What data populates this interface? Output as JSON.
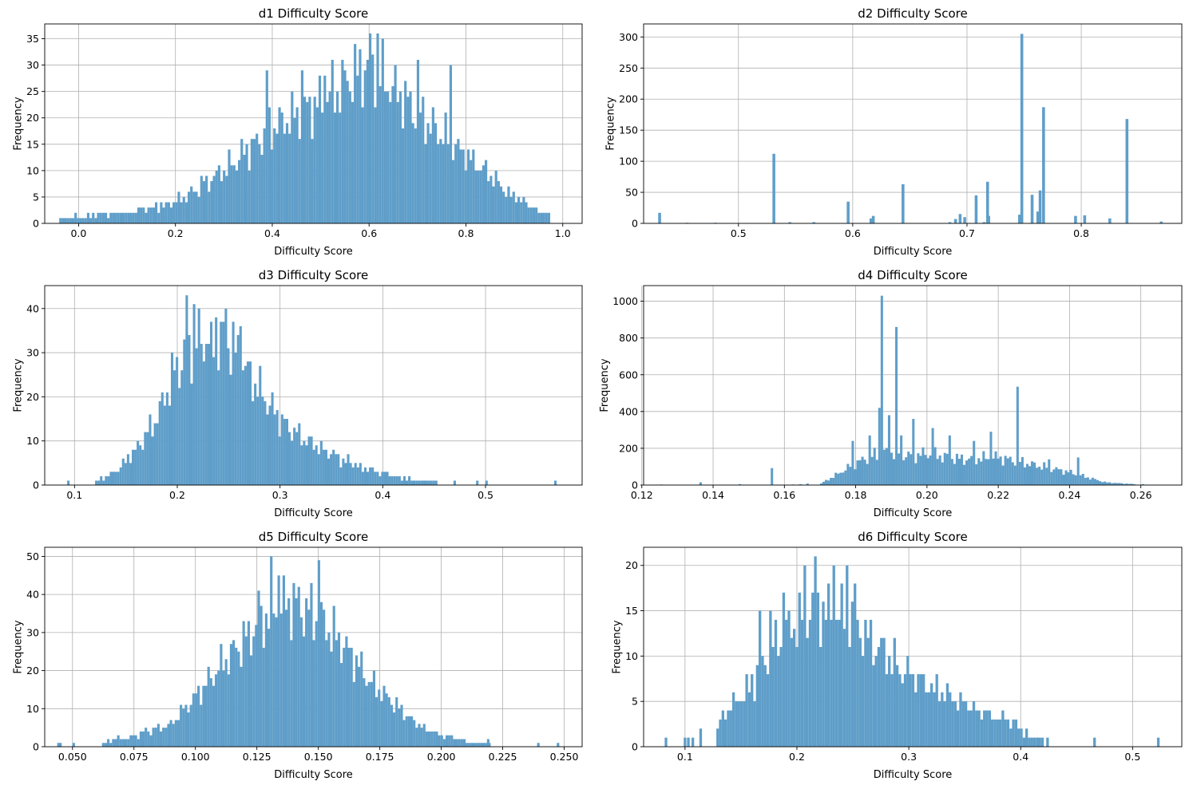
{
  "figure": {
    "bar_color": "#5f9ec9",
    "grid_color": "#b0b0b0"
  },
  "chart_data": [
    {
      "id": "d1",
      "type": "bar",
      "title": "d1 Difficulty Score",
      "xlabel": "Difficulty Score",
      "ylabel": "Frequency",
      "grid": true,
      "xlim": [
        -0.07,
        1.04
      ],
      "ylim": [
        0,
        37.8
      ],
      "xticks": [
        0.0,
        0.2,
        0.4,
        0.6,
        0.8,
        1.0
      ],
      "xtick_labels": [
        "0.0",
        "0.2",
        "0.4",
        "0.6",
        "0.8",
        "1.0"
      ],
      "yticks": [
        0,
        5,
        10,
        15,
        20,
        25,
        30,
        35
      ],
      "ytick_labels": [
        "0",
        "5",
        "10",
        "15",
        "20",
        "25",
        "30",
        "35"
      ],
      "bins": {
        "start": -0.04,
        "width": 0.0052,
        "count": 195
      },
      "envelope": [
        [
          -0.04,
          1
        ],
        [
          0.1,
          2
        ],
        [
          0.2,
          4
        ],
        [
          0.3,
          10
        ],
        [
          0.4,
          18
        ],
        [
          0.5,
          23
        ],
        [
          0.6,
          30
        ],
        [
          0.7,
          21
        ],
        [
          0.8,
          13
        ],
        [
          0.9,
          5
        ],
        [
          0.98,
          1
        ]
      ],
      "peaks": [
        [
          0.6,
          36
        ],
        [
          0.617,
          36
        ],
        [
          0.51,
          28
        ],
        [
          0.767,
          30
        ],
        [
          0.46,
          29
        ],
        [
          0.39,
          29
        ],
        [
          0.7,
          31
        ]
      ]
    },
    {
      "id": "d2",
      "type": "bar",
      "title": "d2 Difficulty Score",
      "xlabel": "Difficulty Score",
      "ylabel": "Frequency",
      "grid": true,
      "xlim": [
        0.417,
        0.888
      ],
      "ylim": [
        0,
        321
      ],
      "xticks": [
        0.5,
        0.6,
        0.7,
        0.8
      ],
      "xtick_labels": [
        "0.5",
        "0.6",
        "0.7",
        "0.8"
      ],
      "yticks": [
        0,
        50,
        100,
        150,
        200,
        250,
        300
      ],
      "ytick_labels": [
        "0",
        "50",
        "100",
        "150",
        "200",
        "250",
        "300"
      ],
      "bars": [
        [
          0.431,
          17
        ],
        [
          0.455,
          1
        ],
        [
          0.48,
          1
        ],
        [
          0.531,
          112
        ],
        [
          0.545,
          2
        ],
        [
          0.566,
          2
        ],
        [
          0.596,
          35
        ],
        [
          0.616,
          8
        ],
        [
          0.618,
          12
        ],
        [
          0.644,
          63
        ],
        [
          0.685,
          2
        ],
        [
          0.69,
          7
        ],
        [
          0.694,
          15
        ],
        [
          0.698,
          10
        ],
        [
          0.708,
          45
        ],
        [
          0.715,
          2
        ],
        [
          0.718,
          67
        ],
        [
          0.719,
          12
        ],
        [
          0.746,
          14
        ],
        [
          0.748,
          305
        ],
        [
          0.757,
          46
        ],
        [
          0.762,
          19
        ],
        [
          0.764,
          53
        ],
        [
          0.767,
          187
        ],
        [
          0.795,
          12
        ],
        [
          0.803,
          13
        ],
        [
          0.825,
          8
        ],
        [
          0.84,
          168
        ],
        [
          0.87,
          3
        ]
      ]
    },
    {
      "id": "d3",
      "type": "bar",
      "title": "d3 Difficulty Score",
      "xlabel": "Difficulty Score",
      "ylabel": "Frequency",
      "grid": true,
      "xlim": [
        0.071,
        0.594
      ],
      "ylim": [
        0,
        45.2
      ],
      "xticks": [
        0.1,
        0.2,
        0.3,
        0.4,
        0.5
      ],
      "xtick_labels": [
        "0.1",
        "0.2",
        "0.3",
        "0.4",
        "0.5"
      ],
      "yticks": [
        0,
        10,
        20,
        30,
        40
      ],
      "ytick_labels": [
        "0",
        "10",
        "20",
        "30",
        "40"
      ],
      "bins": {
        "start": 0.12,
        "width": 0.00238,
        "count": 147
      },
      "envelope": [
        [
          0.12,
          1
        ],
        [
          0.14,
          3
        ],
        [
          0.16,
          8
        ],
        [
          0.18,
          15
        ],
        [
          0.2,
          27
        ],
        [
          0.22,
          33
        ],
        [
          0.25,
          33
        ],
        [
          0.27,
          25
        ],
        [
          0.3,
          15
        ],
        [
          0.32,
          11
        ],
        [
          0.35,
          7
        ],
        [
          0.38,
          4
        ],
        [
          0.41,
          2
        ],
        [
          0.47,
          0
        ]
      ],
      "peaks": [
        [
          0.21,
          43
        ],
        [
          0.233,
          37
        ],
        [
          0.248,
          40
        ],
        [
          0.239,
          38
        ],
        [
          0.217,
          41
        ],
        [
          0.261,
          36
        ]
      ],
      "extra_bars": [
        [
          0.094,
          1
        ],
        [
          0.43,
          1
        ],
        [
          0.44,
          1
        ],
        [
          0.47,
          1
        ],
        [
          0.492,
          1
        ],
        [
          0.501,
          1
        ],
        [
          0.568,
          1
        ]
      ]
    },
    {
      "id": "d4",
      "type": "bar",
      "title": "d4 Difficulty Score",
      "xlabel": "Difficulty Score",
      "ylabel": "Frequency",
      "grid": true,
      "xlim": [
        0.1205,
        0.2715
      ],
      "ylim": [
        0,
        1085
      ],
      "xticks": [
        0.12,
        0.14,
        0.16,
        0.18,
        0.2,
        0.22,
        0.24,
        0.26
      ],
      "xtick_labels": [
        "0.12",
        "0.14",
        "0.16",
        "0.18",
        "0.20",
        "0.22",
        "0.24",
        "0.26"
      ],
      "yticks": [
        0,
        200,
        400,
        600,
        800,
        1000
      ],
      "ytick_labels": [
        "0",
        "200",
        "400",
        "600",
        "800",
        "1000"
      ],
      "bins": {
        "start": 0.17,
        "width": 0.00068,
        "count": 130
      },
      "envelope": [
        [
          0.17,
          5
        ],
        [
          0.175,
          60
        ],
        [
          0.18,
          120
        ],
        [
          0.185,
          160
        ],
        [
          0.19,
          180
        ],
        [
          0.195,
          160
        ],
        [
          0.2,
          170
        ],
        [
          0.21,
          140
        ],
        [
          0.22,
          150
        ],
        [
          0.23,
          110
        ],
        [
          0.24,
          70
        ],
        [
          0.25,
          15
        ],
        [
          0.258,
          5
        ]
      ],
      "peaks": [
        [
          0.1875,
          1030
        ],
        [
          0.1914,
          860
        ],
        [
          0.1867,
          420
        ],
        [
          0.1893,
          380
        ],
        [
          0.2254,
          535
        ],
        [
          0.1795,
          240
        ],
        [
          0.1838,
          270
        ],
        [
          0.2177,
          290
        ],
        [
          0.2016,
          310
        ],
        [
          0.2061,
          270
        ],
        [
          0.1964,
          360
        ],
        [
          0.2425,
          150
        ],
        [
          0.2341,
          140
        ],
        [
          0.1931,
          270
        ],
        [
          0.2132,
          240
        ]
      ],
      "extra_bars": [
        [
          0.1255,
          3
        ],
        [
          0.1365,
          15
        ],
        [
          0.1475,
          5
        ],
        [
          0.1565,
          92
        ],
        [
          0.1625,
          3
        ],
        [
          0.1645,
          5
        ],
        [
          0.1665,
          8
        ],
        [
          0.2606,
          5
        ]
      ]
    },
    {
      "id": "d5",
      "type": "bar",
      "title": "d5 Difficulty Score",
      "xlabel": "Difficulty Score",
      "ylabel": "Frequency",
      "grid": true,
      "xlim": [
        0.0387,
        0.2573
      ],
      "ylim": [
        0,
        52.4
      ],
      "xticks": [
        0.05,
        0.075,
        0.1,
        0.125,
        0.15,
        0.175,
        0.2,
        0.225,
        0.25
      ],
      "xtick_labels": [
        "0.050",
        "0.075",
        "0.100",
        "0.125",
        "0.150",
        "0.175",
        "0.200",
        "0.225",
        "0.250"
      ],
      "yticks": [
        0,
        10,
        20,
        30,
        40,
        50
      ],
      "ytick_labels": [
        "0",
        "10",
        "20",
        "30",
        "40",
        "50"
      ],
      "bins": {
        "start": 0.062,
        "width": 0.00102,
        "count": 160
      },
      "envelope": [
        [
          0.062,
          1
        ],
        [
          0.075,
          3
        ],
        [
          0.09,
          6
        ],
        [
          0.1,
          13
        ],
        [
          0.115,
          25
        ],
        [
          0.13,
          35
        ],
        [
          0.14,
          38
        ],
        [
          0.15,
          34
        ],
        [
          0.16,
          27
        ],
        [
          0.17,
          18
        ],
        [
          0.18,
          12
        ],
        [
          0.19,
          6
        ],
        [
          0.2,
          3
        ],
        [
          0.215,
          1
        ],
        [
          0.225,
          0
        ]
      ],
      "peaks": [
        [
          0.1305,
          50
        ],
        [
          0.1507,
          49
        ],
        [
          0.1336,
          45
        ],
        [
          0.1255,
          41
        ],
        [
          0.1142,
          27
        ],
        [
          0.1214,
          33
        ]
      ],
      "extra_bars": [
        [
          0.0443,
          1
        ],
        [
          0.0451,
          1
        ],
        [
          0.0505,
          1
        ],
        [
          0.2191,
          2
        ],
        [
          0.2395,
          1
        ],
        [
          0.2475,
          1
        ]
      ]
    },
    {
      "id": "d6",
      "type": "bar",
      "title": "d6 Difficulty Score",
      "xlabel": "Difficulty Score",
      "ylabel": "Frequency",
      "grid": true,
      "xlim": [
        0.063,
        0.544
      ],
      "ylim": [
        0,
        22
      ],
      "xticks": [
        0.1,
        0.2,
        0.3,
        0.4,
        0.5
      ],
      "xtick_labels": [
        "0.1",
        "0.2",
        "0.3",
        "0.4",
        "0.5"
      ],
      "yticks": [
        0,
        5,
        10,
        15,
        20
      ],
      "ytick_labels": [
        "0",
        "5",
        "10",
        "15",
        "20"
      ],
      "bins": {
        "start": 0.128,
        "width": 0.00236,
        "count": 128
      },
      "envelope": [
        [
          0.128,
          2
        ],
        [
          0.14,
          4
        ],
        [
          0.16,
          7
        ],
        [
          0.18,
          11
        ],
        [
          0.2,
          14
        ],
        [
          0.22,
          15
        ],
        [
          0.25,
          14
        ],
        [
          0.27,
          11
        ],
        [
          0.3,
          8
        ],
        [
          0.33,
          6
        ],
        [
          0.36,
          4
        ],
        [
          0.39,
          3
        ],
        [
          0.41,
          1
        ],
        [
          0.43,
          0
        ]
      ],
      "peaks": [
        [
          0.217,
          21
        ],
        [
          0.206,
          20
        ],
        [
          0.244,
          20
        ],
        [
          0.232,
          20
        ],
        [
          0.252,
          18
        ],
        [
          0.189,
          17
        ],
        [
          0.167,
          15
        ],
        [
          0.176,
          15
        ]
      ],
      "extra_bars": [
        [
          0.083,
          1
        ],
        [
          0.1,
          1
        ],
        [
          0.103,
          1
        ],
        [
          0.107,
          1
        ],
        [
          0.114,
          2
        ],
        [
          0.415,
          1
        ],
        [
          0.424,
          1
        ],
        [
          0.466,
          1
        ],
        [
          0.523,
          1
        ]
      ]
    }
  ]
}
